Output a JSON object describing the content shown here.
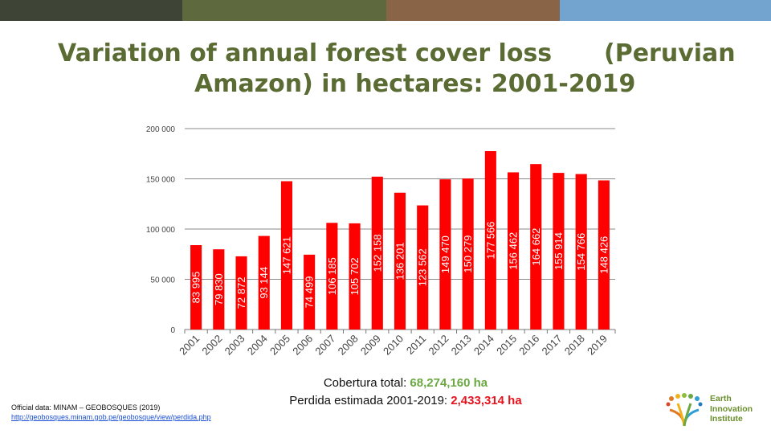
{
  "topbar_colors": [
    "#3e4537",
    "#5e6a3e",
    "#8a6447",
    "#73a3cf"
  ],
  "title": {
    "line1_left": "Variation of annual forest cover loss",
    "line1_right": "(Peruvian",
    "line2": "Amazon) in hectares: 2001-2019"
  },
  "summary": {
    "total_label": "Cobertura total: ",
    "total_value": "68,274,160 ha",
    "total_color": "#6aa842",
    "loss_label": "Perdida estimada 2001-2019: ",
    "loss_value": "2,433,314 ha",
    "loss_color": "#e4141e"
  },
  "source": {
    "label": "Official data: MINAM – GEOBOSQUES (2019)",
    "link": " http://geobosques.minam.gob.pe/geobosque/view/perdida.php"
  },
  "logo": {
    "line1": "Earth",
    "line2": "Innovation",
    "line3": "Institute"
  },
  "chart_data": {
    "type": "bar",
    "title": "",
    "xlabel": "",
    "ylabel": "",
    "ylim": [
      0,
      200000
    ],
    "yticks": [
      0,
      50000,
      100000,
      150000,
      200000
    ],
    "ytick_labels": [
      "0",
      "50 000",
      "100 000",
      "150 000",
      "200 000"
    ],
    "grid": true,
    "bar_color": "#ff0000",
    "categories": [
      "2001",
      "2002",
      "2003",
      "2004",
      "2005",
      "2006",
      "2007",
      "2008",
      "2009",
      "2010",
      "2011",
      "2012",
      "2013",
      "2014",
      "2015",
      "2016",
      "2017",
      "2018",
      "2019"
    ],
    "values": [
      83995,
      79830,
      72872,
      93144,
      147621,
      74499,
      106185,
      105702,
      152158,
      136201,
      123562,
      149470,
      150279,
      177566,
      156462,
      164662,
      155914,
      154766,
      148426
    ],
    "data_labels": [
      "83 995",
      "79 830",
      "72 872",
      "93 144",
      "147 621",
      "74 499",
      "106 185",
      "105 702",
      "152 158",
      "136 201",
      "123 562",
      "149 470",
      "150 279",
      "177 566",
      "156 462",
      "164 662",
      "155 914",
      "154 766",
      "148 426"
    ]
  }
}
